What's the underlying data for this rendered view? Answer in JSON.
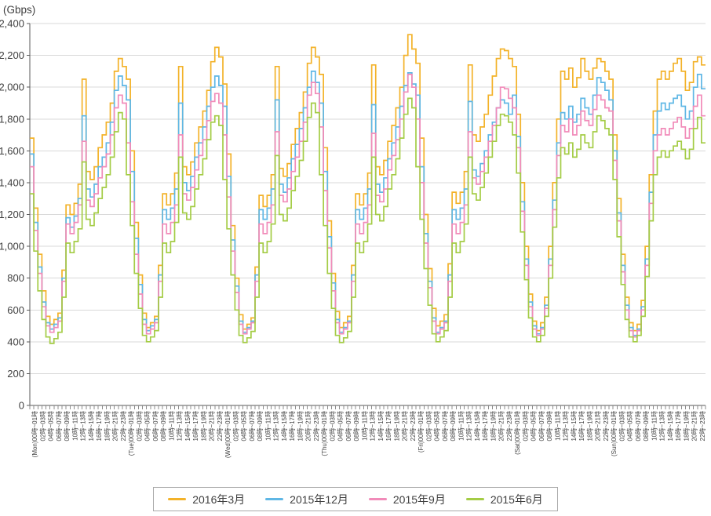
{
  "chart_data": {
    "type": "line",
    "line_style": "step",
    "unit_label": "(Gbps)",
    "ylim": [
      0,
      2400
    ],
    "y_tick_step": 200,
    "y_tick_labels": [
      "0",
      "200",
      "400",
      "600",
      "800",
      "1,000",
      "1,200",
      "1,400",
      "1,600",
      "1,800",
      "2,000",
      "2,200",
      "2,400"
    ],
    "grid": "horizontal",
    "legend_position": "bottom-center",
    "hours_per_point": 1,
    "x_label_every_hours": 2,
    "axis_color": "#595959",
    "tick_color": "#8c8c8c",
    "grid_color": "#d9d9d9",
    "text_color": "#404040",
    "x_labels": [
      "(Mon)00時~01時",
      "02時~03時",
      "04時~05時",
      "06時~07時",
      "08時~09時",
      "10時~11時",
      "12時~13時",
      "14時~15時",
      "16時~17時",
      "18時~19時",
      "20時~21時",
      "22時~23時",
      "(Tue)00時~01時",
      "02時~03時",
      "04時~05時",
      "06時~07時",
      "08時~09時",
      "10時~11時",
      "12時~13時",
      "14時~15時",
      "16時~17時",
      "18時~19時",
      "20時~21時",
      "22時~23時",
      "(Wed)00時~01時",
      "02時~03時",
      "04時~05時",
      "06時~07時",
      "08時~09時",
      "10時~11時",
      "12時~13時",
      "14時~15時",
      "16時~17時",
      "18時~19時",
      "20時~21時",
      "22時~23時",
      "(Thu)00時~01時",
      "02時~03時",
      "04時~05時",
      "06時~07時",
      "08時~09時",
      "10時~11時",
      "12時~13時",
      "14時~15時",
      "16時~17時",
      "18時~19時",
      "20時~21時",
      "22時~23時",
      "(Fri)00時~01時",
      "02時~03時",
      "04時~05時",
      "06時~07時",
      "08時~09時",
      "10時~11時",
      "12時~13時",
      "14時~15時",
      "16時~17時",
      "18時~19時",
      "20時~21時",
      "22時~23時",
      "(Sat)00時~01時",
      "02時~03時",
      "04時~05時",
      "06時~07時",
      "08時~09時",
      "10時~11時",
      "12時~13時",
      "14時~15時",
      "16時~17時",
      "18時~19時",
      "20時~21時",
      "22時~23時",
      "(Sun)00時~01時",
      "02時~03時",
      "04時~05時",
      "06時~07時",
      "08時~09時",
      "10時~11時",
      "12時~13時",
      "14時~15時",
      "16時~17時",
      "18時~19時",
      "20時~21時",
      "22時~23時"
    ],
    "series": [
      {
        "name": "2016年3月",
        "color": "#f3b229",
        "values_by_day": [
          [
            1680,
            1240,
            950,
            720,
            560,
            510,
            540,
            580,
            850,
            1260,
            1200,
            1270,
            1390,
            2050,
            1470,
            1420,
            1500,
            1620,
            1700,
            1780,
            1900,
            2100,
            2180,
            2130
          ],
          [
            2050,
            1600,
            1150,
            820,
            580,
            490,
            520,
            560,
            880,
            1330,
            1260,
            1330,
            1460,
            2130,
            1500,
            1450,
            1530,
            1650,
            1750,
            1850,
            1980,
            2160,
            2250,
            2190
          ],
          [
            2020,
            1580,
            1130,
            800,
            570,
            480,
            510,
            550,
            870,
            1320,
            1250,
            1320,
            1450,
            2130,
            1490,
            1440,
            1520,
            1640,
            1740,
            1840,
            1970,
            2150,
            2250,
            2190
          ],
          [
            2080,
            1620,
            1160,
            830,
            590,
            490,
            520,
            560,
            880,
            1330,
            1260,
            1330,
            1460,
            2140,
            1500,
            1450,
            1540,
            1660,
            1760,
            1870,
            2000,
            2200,
            2330,
            2240
          ],
          [
            2150,
            1680,
            1200,
            860,
            610,
            500,
            530,
            570,
            890,
            1340,
            1270,
            1340,
            1470,
            2140,
            1700,
            1660,
            1750,
            1830,
            1950,
            2070,
            2180,
            2240,
            2230,
            2180
          ],
          [
            2130,
            1830,
            1400,
            1000,
            700,
            530,
            470,
            520,
            680,
            1000,
            1400,
            1800,
            2100,
            2050,
            2120,
            2000,
            2060,
            2180,
            2100,
            2050,
            2120,
            2180,
            2160,
            2100
          ],
          [
            2050,
            1700,
            1300,
            950,
            680,
            520,
            470,
            510,
            660,
            1000,
            1450,
            1850,
            2050,
            2100,
            2050,
            2100,
            2150,
            2180,
            2100,
            1980,
            2030,
            2160,
            2190,
            2140
          ]
        ]
      },
      {
        "name": "2015年12月",
        "color": "#5fb7e5",
        "values_by_day": [
          [
            1580,
            1150,
            870,
            650,
            520,
            480,
            510,
            550,
            800,
            1180,
            1120,
            1190,
            1300,
            1820,
            1360,
            1310,
            1390,
            1500,
            1560,
            1650,
            1780,
            1980,
            2070,
            2010
          ],
          [
            1920,
            1470,
            1050,
            760,
            540,
            470,
            500,
            540,
            820,
            1230,
            1170,
            1240,
            1360,
            1900,
            1400,
            1350,
            1440,
            1560,
            1650,
            1750,
            1880,
            2000,
            2070,
            2010
          ],
          [
            1880,
            1440,
            1040,
            750,
            530,
            460,
            490,
            530,
            820,
            1230,
            1170,
            1240,
            1360,
            1920,
            1390,
            1340,
            1430,
            1550,
            1640,
            1740,
            1870,
            2000,
            2100,
            2030
          ],
          [
            1900,
            1470,
            1060,
            770,
            540,
            460,
            490,
            530,
            820,
            1230,
            1170,
            1240,
            1360,
            1890,
            1390,
            1340,
            1430,
            1550,
            1650,
            1750,
            1880,
            2010,
            2090,
            2020
          ],
          [
            1950,
            1500,
            1080,
            780,
            550,
            460,
            490,
            530,
            820,
            1230,
            1170,
            1240,
            1360,
            1910,
            1480,
            1440,
            1520,
            1600,
            1700,
            1780,
            1870,
            1920,
            1900,
            1830
          ],
          [
            1950,
            1690,
            1280,
            920,
            650,
            500,
            450,
            490,
            630,
            920,
            1290,
            1650,
            1840,
            1800,
            1880,
            1780,
            1830,
            1930,
            1870,
            1830,
            1950,
            2060,
            2030,
            1980
          ],
          [
            1920,
            1600,
            1210,
            880,
            630,
            490,
            440,
            480,
            620,
            920,
            1340,
            1700,
            1850,
            1900,
            1860,
            1900,
            1930,
            1950,
            1880,
            1800,
            1850,
            2000,
            2080,
            1990
          ]
        ]
      },
      {
        "name": "2015年9月",
        "color": "#f18bb9",
        "values_by_day": [
          [
            1500,
            1100,
            830,
            620,
            500,
            460,
            490,
            530,
            780,
            1140,
            1080,
            1150,
            1260,
            1660,
            1290,
            1250,
            1330,
            1430,
            1500,
            1580,
            1700,
            1870,
            1950,
            1900
          ],
          [
            1650,
            1280,
            950,
            700,
            510,
            450,
            480,
            520,
            780,
            1140,
            1080,
            1150,
            1260,
            1700,
            1330,
            1290,
            1370,
            1480,
            1570,
            1670,
            1790,
            1910,
            1960,
            1900
          ],
          [
            1700,
            1310,
            970,
            710,
            510,
            450,
            480,
            520,
            780,
            1140,
            1080,
            1150,
            1260,
            1720,
            1320,
            1280,
            1360,
            1470,
            1560,
            1660,
            1780,
            1950,
            2030,
            1960
          ],
          [
            1750,
            1350,
            990,
            720,
            520,
            450,
            480,
            520,
            780,
            1140,
            1080,
            1150,
            1260,
            1710,
            1320,
            1280,
            1360,
            1480,
            1570,
            1670,
            1800,
            1970,
            2080,
            2000
          ],
          [
            1800,
            1400,
            1020,
            740,
            530,
            450,
            480,
            520,
            780,
            1140,
            1080,
            1150,
            1260,
            1720,
            1430,
            1390,
            1470,
            1560,
            1660,
            1760,
            1870,
            2000,
            1990,
            1930
          ],
          [
            1870,
            1620,
            1220,
            880,
            620,
            480,
            440,
            480,
            610,
            880,
            1230,
            1570,
            1760,
            1720,
            1800,
            1700,
            1760,
            1850,
            1790,
            1760,
            1860,
            1950,
            1920,
            1870
          ],
          [
            1850,
            1540,
            1160,
            840,
            600,
            470,
            430,
            470,
            600,
            880,
            1270,
            1600,
            1700,
            1740,
            1700,
            1740,
            1780,
            1810,
            1750,
            1680,
            1740,
            1880,
            1950,
            1820
          ]
        ]
      },
      {
        "name": "2015年6月",
        "color": "#a4cc45",
        "values_by_day": [
          [
            1330,
            970,
            720,
            540,
            430,
            390,
            420,
            460,
            680,
            1020,
            960,
            1030,
            1110,
            1530,
            1170,
            1130,
            1210,
            1300,
            1370,
            1450,
            1560,
            1720,
            1840,
            1800
          ],
          [
            1450,
            1130,
            830,
            610,
            440,
            400,
            430,
            470,
            680,
            1020,
            960,
            1030,
            1150,
            1560,
            1210,
            1170,
            1250,
            1360,
            1450,
            1550,
            1670,
            1780,
            1820,
            1760
          ],
          [
            1420,
            1110,
            820,
            600,
            440,
            395,
            425,
            465,
            680,
            1020,
            960,
            1030,
            1140,
            1570,
            1200,
            1160,
            1240,
            1350,
            1440,
            1540,
            1660,
            1810,
            1900,
            1840
          ],
          [
            1450,
            1130,
            830,
            610,
            440,
            395,
            425,
            465,
            680,
            1020,
            960,
            1030,
            1140,
            1560,
            1200,
            1160,
            1250,
            1360,
            1450,
            1550,
            1680,
            1830,
            1930,
            1870
          ],
          [
            1500,
            1170,
            860,
            630,
            450,
            400,
            430,
            470,
            680,
            1020,
            960,
            1030,
            1140,
            1560,
            1330,
            1290,
            1370,
            1460,
            1560,
            1660,
            1760,
            1830,
            1820,
            1780
          ],
          [
            1700,
            1460,
            1090,
            790,
            550,
            430,
            400,
            440,
            560,
            800,
            1120,
            1430,
            1620,
            1580,
            1650,
            1560,
            1610,
            1700,
            1650,
            1620,
            1720,
            1820,
            1790,
            1740
          ],
          [
            1700,
            1420,
            1060,
            760,
            540,
            430,
            400,
            440,
            560,
            810,
            1160,
            1450,
            1560,
            1600,
            1560,
            1600,
            1630,
            1660,
            1610,
            1550,
            1610,
            1740,
            1810,
            1650
          ]
        ]
      }
    ]
  }
}
